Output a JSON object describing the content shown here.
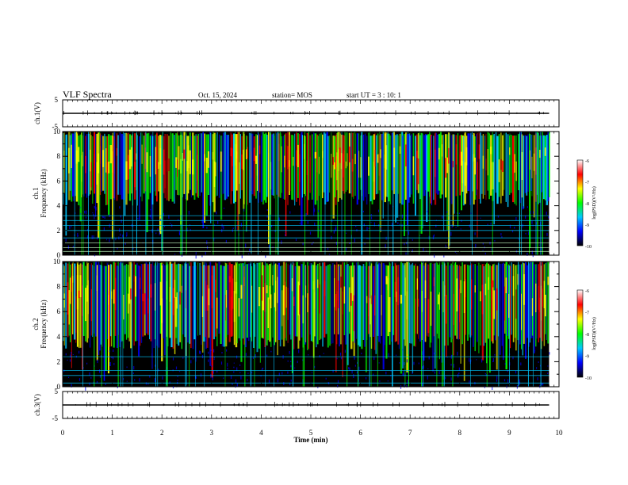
{
  "header": {
    "title": "VLF Spectra",
    "date": "Oct. 15, 2024",
    "station": "station= MOS",
    "start": "start  UT =   3 : 10: 1"
  },
  "chart_data": [
    {
      "type": "line",
      "name": "ch1-waveform-panel",
      "ylabel": "ch.1(V)",
      "ylim": [
        -5,
        5
      ],
      "yticks": [
        "5",
        "-5"
      ],
      "xlim": [
        0,
        10
      ],
      "x": [
        0,
        9.8
      ],
      "values": [
        0,
        0
      ]
    },
    {
      "type": "heatmap",
      "name": "ch1-spectrogram",
      "ylabel": "ch.1\nFrequency (kHz)",
      "ylabel_top": "ch.1",
      "ylabel_bottom": "Frequency (kHz)",
      "ylim": [
        0,
        10
      ],
      "yticks": [
        "0",
        "2",
        "4",
        "6",
        "8",
        "10"
      ],
      "xlim": [
        0,
        10
      ],
      "data_end_min": 9.8,
      "emission_band_khz": [
        4,
        10
      ],
      "emission_peak_khz": [
        6,
        9
      ],
      "colorbar": {
        "label": "log(PSD)(V²/Hz)",
        "range": [
          -10,
          -6
        ],
        "ticks": [
          "-6",
          "-7",
          "-8",
          "-9",
          "-10"
        ],
        "colors": [
          "#000000",
          "#0000ff",
          "#00c8ff",
          "#00ff00",
          "#ffff00",
          "#ff0000",
          "#ffffff"
        ]
      }
    },
    {
      "type": "heatmap",
      "name": "ch2-spectrogram",
      "ylabel": "ch.2\nFrequency (kHz)",
      "ylabel_top": "ch.2",
      "ylabel_bottom": "Frequency (kHz)",
      "ylim": [
        0,
        10
      ],
      "yticks": [
        "0",
        "2",
        "4",
        "6",
        "8",
        "10"
      ],
      "xlim": [
        0,
        10
      ],
      "data_end_min": 9.8,
      "emission_band_khz": [
        3,
        10
      ],
      "emission_peak_khz": [
        5,
        9
      ],
      "colorbar": {
        "label": "log(PSD)(V²/Hz)",
        "range": [
          -10,
          -6
        ],
        "ticks": [
          "-6",
          "-7",
          "-8",
          "-9",
          "-10"
        ],
        "colors": [
          "#000000",
          "#0000ff",
          "#00c8ff",
          "#00ff00",
          "#ffff00",
          "#ff0000",
          "#ffffff"
        ]
      }
    },
    {
      "type": "line",
      "name": "ch3-waveform-panel",
      "ylabel": "ch.3(V)",
      "ylim": [
        -5,
        5
      ],
      "yticks": [
        "5",
        "-5"
      ],
      "xlim": [
        0,
        10
      ],
      "x": [
        0,
        9.8
      ],
      "values": [
        0,
        0
      ]
    }
  ],
  "xaxis": {
    "label": "Time (min)",
    "ticks": [
      "0",
      "1",
      "2",
      "3",
      "4",
      "5",
      "6",
      "7",
      "8",
      "9",
      "10"
    ]
  }
}
